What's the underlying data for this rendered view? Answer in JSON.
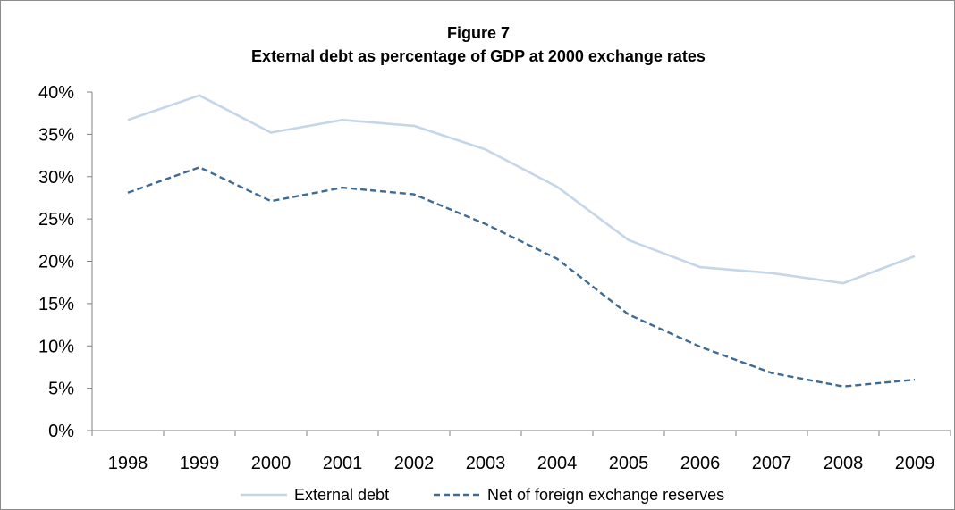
{
  "chart_data": {
    "type": "line",
    "title": "Figure 7",
    "subtitle": "External debt as percentage of GDP at 2000 exchange rates",
    "categories": [
      "1998",
      "1999",
      "2000",
      "2001",
      "2002",
      "2003",
      "2004",
      "2005",
      "2006",
      "2007",
      "2008",
      "2009"
    ],
    "y_ticks": [
      "0%",
      "5%",
      "10%",
      "15%",
      "20%",
      "25%",
      "30%",
      "35%",
      "40%"
    ],
    "ylim": [
      0,
      40
    ],
    "grid": false,
    "legend_position": "bottom",
    "series": [
      {
        "name": "External debt",
        "color": "#c5d6e8",
        "dash": "solid",
        "values": [
          36.7,
          39.6,
          35.2,
          36.7,
          36.0,
          33.2,
          28.8,
          22.5,
          19.3,
          18.6,
          17.4,
          20.6
        ]
      },
      {
        "name": "Net of foreign exchange reserves",
        "color": "#3f6a93",
        "dash": "dashed",
        "values": [
          28.1,
          31.1,
          27.1,
          28.7,
          27.9,
          24.4,
          20.3,
          13.7,
          9.9,
          6.8,
          5.2,
          6.0
        ]
      }
    ]
  }
}
